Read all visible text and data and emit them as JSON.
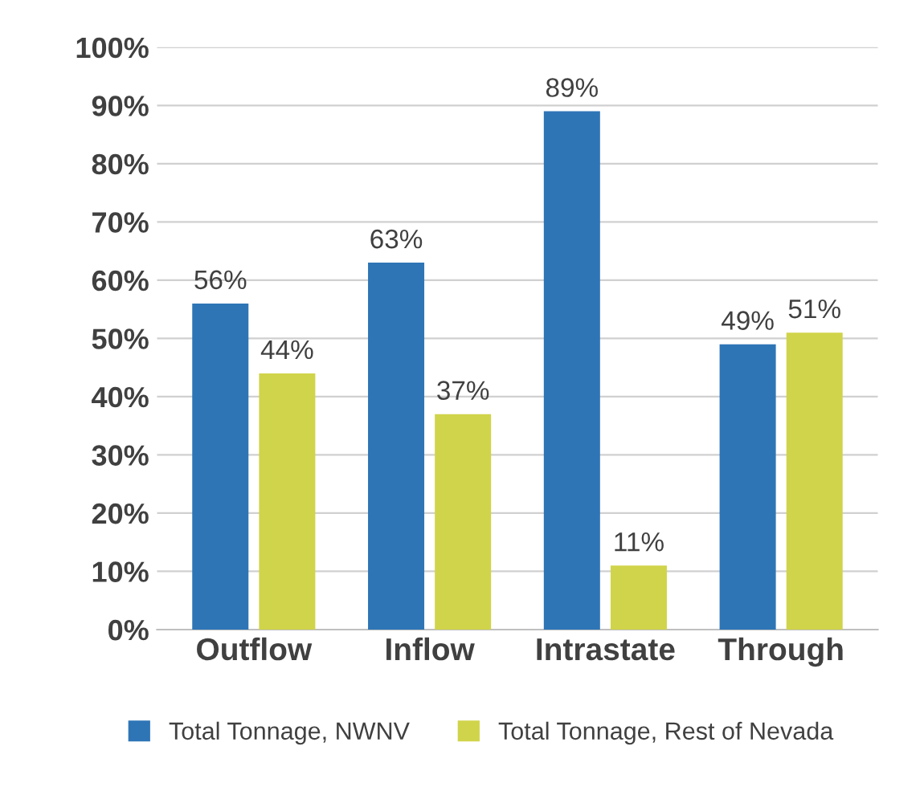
{
  "chart_data": {
    "type": "bar",
    "categories": [
      "Outflow",
      "Inflow",
      "Intrastate",
      "Through"
    ],
    "series": [
      {
        "name": "Total Tonnage, NWNV",
        "color": "#2e75b6",
        "values": [
          56,
          63,
          89,
          49
        ],
        "value_labels": [
          "56%",
          "63%",
          "89%",
          "49%"
        ]
      },
      {
        "name": "Total Tonnage, Rest of Nevada",
        "color": "#d0d44a",
        "values": [
          44,
          37,
          11,
          51
        ],
        "value_labels": [
          "44%",
          "37%",
          "11%",
          "51%"
        ]
      }
    ],
    "ylim": [
      0,
      100
    ],
    "yticks": [
      {
        "value": 0,
        "label": "0%"
      },
      {
        "value": 10,
        "label": "10%"
      },
      {
        "value": 20,
        "label": "20%"
      },
      {
        "value": 30,
        "label": "30%"
      },
      {
        "value": 40,
        "label": "40%"
      },
      {
        "value": 50,
        "label": "50%"
      },
      {
        "value": 60,
        "label": "60%"
      },
      {
        "value": 70,
        "label": "70%"
      },
      {
        "value": 80,
        "label": "80%"
      },
      {
        "value": 90,
        "label": "90%"
      },
      {
        "value": 100,
        "label": "100%"
      }
    ],
    "grid": "y",
    "legend": "bottom"
  }
}
